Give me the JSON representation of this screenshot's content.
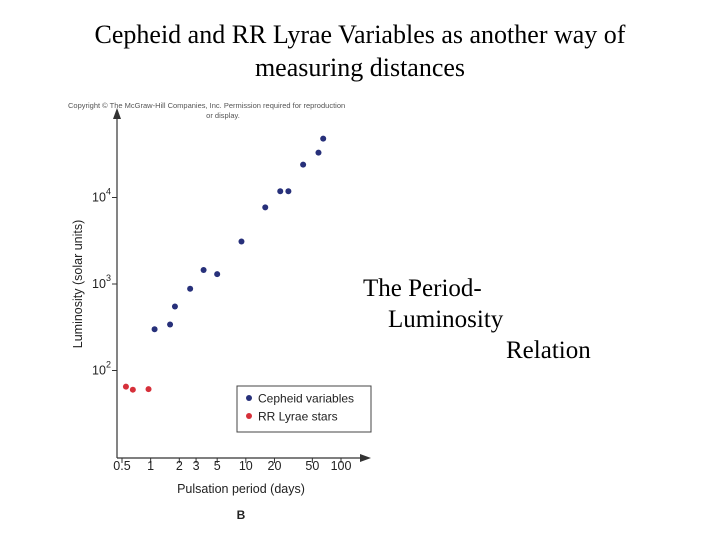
{
  "slide": {
    "title": "Cepheid and RR Lyrae Variables as another way of measuring distances",
    "copyright_line1": "Copyright © The McGraw-Hill Companies, Inc. Permission required for reproduction",
    "copyright_line2": "or display.",
    "caption_line1": "The Period-",
    "caption_line2": "Luminosity",
    "caption_line3": "Relation",
    "panel_label": "B"
  },
  "chart_data": {
    "type": "scatter",
    "xlabel": "Pulsation period (days)",
    "ylabel": "Luminosity (solar units)",
    "x_scale": "log",
    "y_scale": "log",
    "xlim": [
      0.5,
      100
    ],
    "ylim": [
      10,
      100000
    ],
    "x_ticks": [
      {
        "value": 0.5,
        "label": "0.5"
      },
      {
        "value": 1,
        "label": "1"
      },
      {
        "value": 2,
        "label": "2"
      },
      {
        "value": 3,
        "label": "3"
      },
      {
        "value": 5,
        "label": "5"
      },
      {
        "value": 10,
        "label": "10"
      },
      {
        "value": 20,
        "label": "20"
      },
      {
        "value": 50,
        "label": "50"
      },
      {
        "value": 100,
        "label": "100"
      }
    ],
    "y_ticks": [
      {
        "value": 100,
        "base": "10",
        "exp": "2"
      },
      {
        "value": 1000,
        "base": "10",
        "exp": "3"
      },
      {
        "value": 10000,
        "base": "10",
        "exp": "4"
      }
    ],
    "grid": false,
    "legend_position": "bottom-right",
    "series": [
      {
        "name": "Cepheid variables",
        "color": "#27307a",
        "points": [
          {
            "x": 1.1,
            "y": 300
          },
          {
            "x": 1.6,
            "y": 340
          },
          {
            "x": 1.8,
            "y": 550
          },
          {
            "x": 2.6,
            "y": 880
          },
          {
            "x": 3.6,
            "y": 1450
          },
          {
            "x": 5.0,
            "y": 1300
          },
          {
            "x": 9.0,
            "y": 3100
          },
          {
            "x": 16,
            "y": 7700
          },
          {
            "x": 23,
            "y": 11800
          },
          {
            "x": 28,
            "y": 11800
          },
          {
            "x": 40,
            "y": 24000
          },
          {
            "x": 58,
            "y": 33000
          },
          {
            "x": 65,
            "y": 48000
          }
        ]
      },
      {
        "name": "RR Lyrae stars",
        "color": "#d6303a",
        "points": [
          {
            "x": 0.55,
            "y": 65
          },
          {
            "x": 0.65,
            "y": 60
          },
          {
            "x": 0.95,
            "y": 61
          }
        ]
      }
    ]
  }
}
